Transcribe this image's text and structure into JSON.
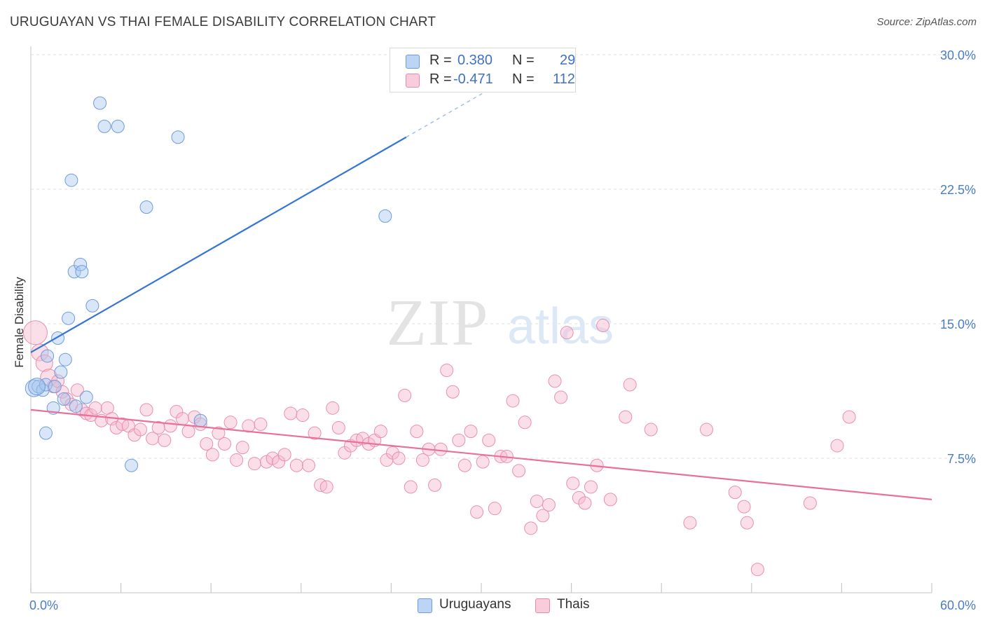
{
  "header": {
    "title": "URUGUAYAN VS THAI FEMALE DISABILITY CORRELATION CHART",
    "source": "Source: ZipAtlas.com"
  },
  "watermark": {
    "zip": "ZIP",
    "atlas": "atlas"
  },
  "legend": {
    "r_label": "R =",
    "n_label": "N =",
    "rows": [
      {
        "r": "0.380",
        "n": "29",
        "color": "#a9c8f0"
      },
      {
        "r": "-0.471",
        "n": "112",
        "color": "#f6b8cc"
      }
    ]
  },
  "bottom_legend": [
    {
      "label": "Uruguayans",
      "color": "#a9c8f0"
    },
    {
      "label": "Thais",
      "color": "#f6b8cc"
    }
  ],
  "chart_data": {
    "type": "scatter",
    "title": "URUGUAYAN VS THAI FEMALE DISABILITY CORRELATION CHART",
    "xlabel": "",
    "ylabel": "Female Disability",
    "xlim": [
      0,
      60
    ],
    "ylim": [
      0,
      30
    ],
    "x_tick_labels": [
      "0.0%",
      "60.0%"
    ],
    "y_ticks": [
      7.5,
      15.0,
      22.5,
      30.0
    ],
    "y_tick_labels": [
      "7.5%",
      "15.0%",
      "22.5%",
      "30.0%"
    ],
    "grid": true,
    "legend_position": "top-center",
    "colors": {
      "uruguayans": "#3575d6",
      "thais": "#e8709b"
    },
    "series": [
      {
        "name": "Uruguayans",
        "R": 0.38,
        "N": 29,
        "trend": {
          "x0": 0.0,
          "y0": 13.4,
          "x1": 25.0,
          "y1": 25.4,
          "dash_to_x": 34.0
        },
        "points": [
          [
            0.2,
            11.4
          ],
          [
            0.5,
            11.5
          ],
          [
            0.8,
            11.3
          ],
          [
            1.0,
            11.6
          ],
          [
            1.1,
            13.2
          ],
          [
            1.5,
            10.3
          ],
          [
            1.6,
            11.5
          ],
          [
            1.8,
            14.2
          ],
          [
            2.0,
            12.3
          ],
          [
            2.2,
            10.8
          ],
          [
            2.3,
            13.0
          ],
          [
            2.5,
            15.3
          ],
          [
            2.7,
            23.0
          ],
          [
            2.9,
            17.9
          ],
          [
            3.0,
            10.4
          ],
          [
            3.3,
            18.3
          ],
          [
            3.4,
            17.9
          ],
          [
            3.7,
            10.9
          ],
          [
            4.1,
            16.0
          ],
          [
            4.6,
            27.3
          ],
          [
            4.9,
            26.0
          ],
          [
            5.8,
            26.0
          ],
          [
            7.7,
            21.5
          ],
          [
            6.7,
            7.1
          ],
          [
            9.8,
            25.4
          ],
          [
            11.3,
            9.6
          ],
          [
            23.6,
            21.0
          ],
          [
            1.0,
            8.9
          ],
          [
            0.4,
            11.5
          ]
        ]
      },
      {
        "name": "Thais",
        "R": -0.471,
        "N": 112,
        "trend": {
          "x0": 0.0,
          "y0": 10.2,
          "x1": 60.0,
          "y1": 5.2
        },
        "points": [
          [
            0.3,
            14.5
          ],
          [
            0.6,
            13.4
          ],
          [
            0.9,
            12.8
          ],
          [
            1.2,
            12.0
          ],
          [
            1.5,
            11.5
          ],
          [
            1.8,
            11.8
          ],
          [
            2.1,
            11.2
          ],
          [
            2.4,
            10.8
          ],
          [
            2.7,
            10.5
          ],
          [
            3.1,
            11.3
          ],
          [
            3.4,
            10.2
          ],
          [
            3.7,
            10.0
          ],
          [
            4.0,
            9.9
          ],
          [
            4.3,
            10.3
          ],
          [
            4.7,
            9.6
          ],
          [
            5.1,
            10.3
          ],
          [
            5.4,
            9.7
          ],
          [
            5.7,
            9.2
          ],
          [
            6.1,
            9.4
          ],
          [
            6.5,
            9.3
          ],
          [
            6.9,
            8.8
          ],
          [
            7.3,
            9.1
          ],
          [
            7.7,
            10.2
          ],
          [
            8.1,
            8.6
          ],
          [
            8.5,
            9.2
          ],
          [
            8.9,
            8.5
          ],
          [
            9.3,
            9.3
          ],
          [
            9.7,
            10.1
          ],
          [
            10.1,
            9.7
          ],
          [
            10.5,
            9.0
          ],
          [
            10.9,
            9.8
          ],
          [
            11.3,
            9.4
          ],
          [
            11.7,
            8.3
          ],
          [
            12.1,
            7.7
          ],
          [
            12.5,
            8.9
          ],
          [
            12.9,
            8.3
          ],
          [
            13.3,
            9.5
          ],
          [
            13.7,
            7.4
          ],
          [
            14.1,
            8.1
          ],
          [
            14.5,
            9.3
          ],
          [
            14.9,
            7.2
          ],
          [
            15.3,
            9.4
          ],
          [
            15.7,
            7.3
          ],
          [
            16.1,
            7.5
          ],
          [
            16.5,
            7.3
          ],
          [
            16.9,
            7.7
          ],
          [
            17.3,
            10.0
          ],
          [
            17.7,
            7.1
          ],
          [
            18.1,
            9.9
          ],
          [
            18.5,
            7.1
          ],
          [
            18.9,
            8.9
          ],
          [
            19.3,
            6.0
          ],
          [
            19.7,
            5.9
          ],
          [
            20.1,
            10.3
          ],
          [
            20.5,
            9.2
          ],
          [
            20.9,
            7.8
          ],
          [
            21.3,
            8.2
          ],
          [
            21.7,
            8.5
          ],
          [
            22.1,
            8.6
          ],
          [
            22.5,
            8.3
          ],
          [
            22.9,
            8.5
          ],
          [
            23.3,
            9.0
          ],
          [
            23.7,
            7.4
          ],
          [
            24.1,
            7.8
          ],
          [
            24.5,
            7.5
          ],
          [
            24.9,
            11.0
          ],
          [
            25.3,
            5.9
          ],
          [
            25.7,
            9.0
          ],
          [
            26.1,
            7.4
          ],
          [
            26.5,
            8.0
          ],
          [
            26.9,
            6.0
          ],
          [
            27.3,
            8.0
          ],
          [
            27.7,
            12.4
          ],
          [
            28.1,
            11.2
          ],
          [
            28.5,
            8.5
          ],
          [
            28.9,
            7.1
          ],
          [
            29.3,
            9.0
          ],
          [
            29.7,
            4.5
          ],
          [
            30.1,
            7.3
          ],
          [
            30.5,
            8.5
          ],
          [
            30.9,
            4.7
          ],
          [
            31.3,
            7.6
          ],
          [
            31.7,
            7.6
          ],
          [
            32.1,
            10.7
          ],
          [
            32.5,
            6.8
          ],
          [
            32.9,
            9.5
          ],
          [
            33.3,
            3.6
          ],
          [
            33.7,
            5.1
          ],
          [
            34.1,
            4.3
          ],
          [
            34.5,
            4.9
          ],
          [
            34.9,
            11.8
          ],
          [
            35.3,
            10.9
          ],
          [
            35.7,
            14.5
          ],
          [
            36.1,
            6.1
          ],
          [
            36.5,
            5.3
          ],
          [
            36.9,
            5.0
          ],
          [
            37.3,
            5.9
          ],
          [
            37.7,
            7.1
          ],
          [
            38.1,
            14.9
          ],
          [
            38.6,
            5.2
          ],
          [
            39.6,
            9.8
          ],
          [
            39.9,
            11.6
          ],
          [
            43.9,
            3.9
          ],
          [
            45.0,
            9.1
          ],
          [
            46.9,
            5.6
          ],
          [
            47.5,
            4.8
          ],
          [
            47.7,
            3.9
          ],
          [
            48.4,
            1.3
          ],
          [
            51.9,
            5.0
          ],
          [
            53.7,
            8.2
          ],
          [
            54.5,
            9.8
          ],
          [
            41.3,
            9.1
          ]
        ]
      }
    ]
  }
}
